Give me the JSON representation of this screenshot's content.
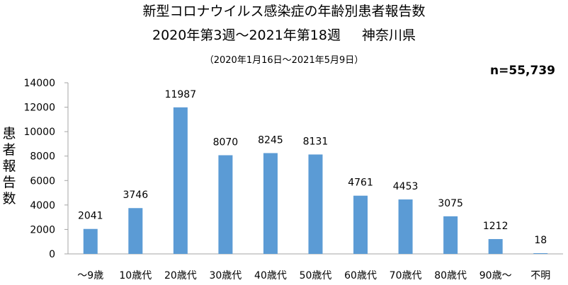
{
  "chart_data": {
    "type": "bar",
    "title": "新型コロナウイルス感染症の年齢別患者報告数",
    "subtitle": "2020年第3週～2021年第18週",
    "region": "神奈川県",
    "period": "（2020年1月16日～2021年5月9日）",
    "total_label": "n=55,739",
    "ylabel": "患者報告数",
    "xlabel": "",
    "categories": [
      "～9歳",
      "10歳代",
      "20歳代",
      "30歳代",
      "40歳代",
      "50歳代",
      "60歳代",
      "70歳代",
      "80歳代",
      "90歳～",
      "不明"
    ],
    "values": [
      2041,
      3746,
      11987,
      8070,
      8245,
      8131,
      4761,
      4453,
      3075,
      1212,
      18
    ],
    "ylim": [
      0,
      14000
    ],
    "yticks": [
      0,
      2000,
      4000,
      6000,
      8000,
      10000,
      12000,
      14000
    ],
    "grid": false,
    "bar_color": "#5b9bd5"
  }
}
